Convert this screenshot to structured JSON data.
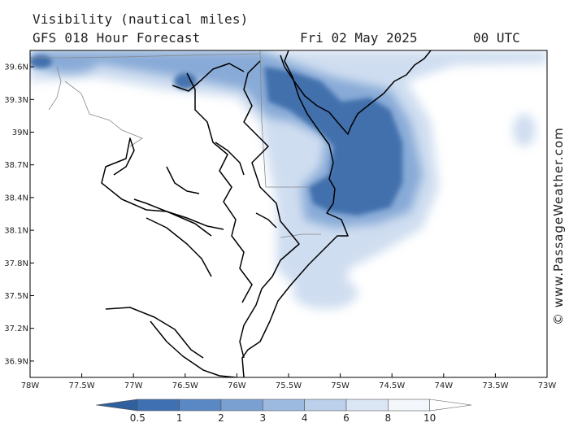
{
  "header": {
    "title": "Visibility (nautical miles)",
    "subtitle": "GFS 018 Hour Forecast",
    "date": "Fri 02 May 2025",
    "time": "00 UTC"
  },
  "map": {
    "lon_range": [
      -78,
      -73
    ],
    "lat_range": [
      36.75,
      39.75
    ],
    "lat_ticks": [
      "39.6N",
      "39.3N",
      "39N",
      "38.7N",
      "38.4N",
      "38.1N",
      "37.8N",
      "37.5N",
      "37.2N",
      "36.9N"
    ],
    "lon_ticks": [
      "78W",
      "77.5W",
      "77W",
      "76.5W",
      "76W",
      "75.5W",
      "75W",
      "74.5W",
      "74W",
      "73.5W",
      "73W"
    ],
    "colors": {
      "land_outline": "#000000",
      "border": "#888888",
      "dark": "#3b6aa8",
      "mid": "#6a95cc",
      "light": "#a8c2e4",
      "lightest": "#dde7f5"
    }
  },
  "legend": {
    "labels": [
      "0.5",
      "1",
      "2",
      "3",
      "4",
      "6",
      "8",
      "10"
    ],
    "colors": [
      "#2f5f9e",
      "#3f71b2",
      "#5a88c4",
      "#7aa0d2",
      "#9cb9e0",
      "#bcd0ec",
      "#dbe6f5",
      "#f3f7fc"
    ]
  },
  "watermark": "© www.PassageWeather.com"
}
